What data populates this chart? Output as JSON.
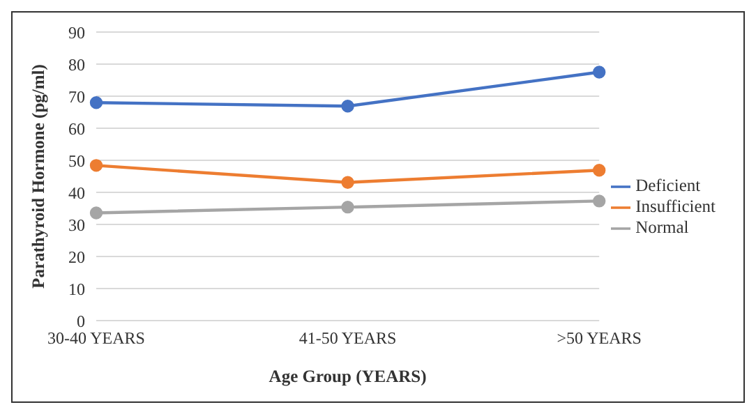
{
  "chart_data": {
    "type": "line",
    "xlabel": "Age Group (YEARS)",
    "ylabel": "Parathyroid Hormone (pg/ml)",
    "categories": [
      "30-40 YEARS",
      "41-50 YEARS",
      ">50 YEARS"
    ],
    "series": [
      {
        "name": "Deficient",
        "color": "#4472c4",
        "values": [
          68,
          66.9,
          77.5
        ]
      },
      {
        "name": "Insufficient",
        "color": "#ed7d31",
        "values": [
          48.4,
          43.1,
          46.9
        ]
      },
      {
        "name": "Normal",
        "color": "#a5a5a5",
        "values": [
          33.6,
          35.4,
          37.3
        ]
      }
    ],
    "ylim": [
      0,
      90
    ],
    "yticks": [
      0,
      10,
      20,
      30,
      40,
      50,
      60,
      70,
      80,
      90
    ],
    "grid": "y",
    "legend": "right",
    "marker": "circle"
  }
}
